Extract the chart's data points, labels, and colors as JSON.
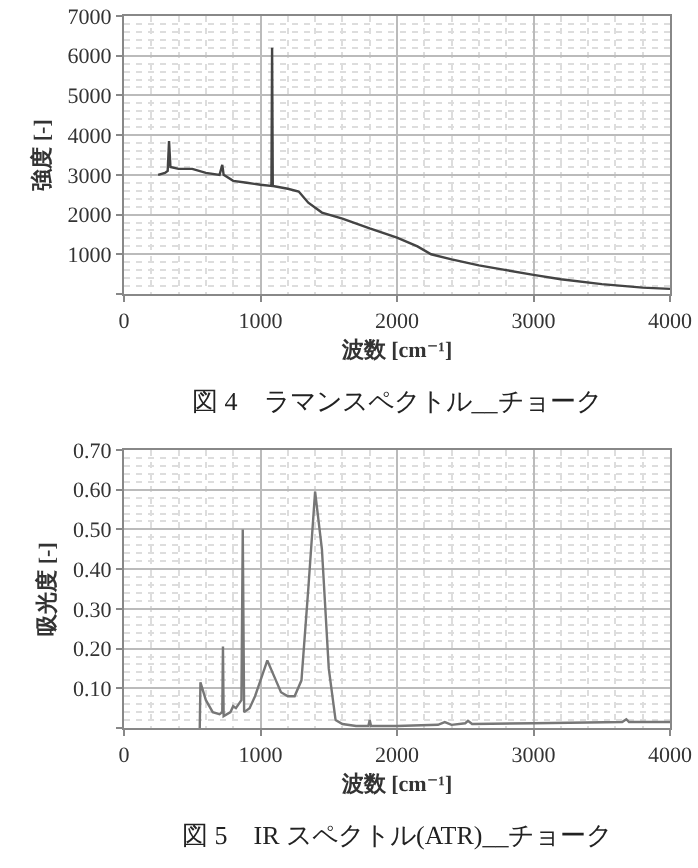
{
  "chart_data": [
    {
      "type": "line",
      "xlabel": "波数 [cm⁻¹]",
      "ylabel": "強度 [-]",
      "annotations": [
        "図 4　ラマンスペクトル__チョーク"
      ],
      "xlim": [
        0,
        4000
      ],
      "ylim": [
        0,
        7000
      ],
      "xticks": [
        0,
        1000,
        2000,
        3000,
        4000
      ],
      "yticks": [
        {
          "value": 0,
          "label": null
        },
        1000,
        2000,
        3000,
        4000,
        5000,
        6000,
        7000
      ],
      "grid": true,
      "marker": "none",
      "line_style": "solid",
      "series": [
        {
          "color": "#444444",
          "x": [
            250,
            300,
            320,
            330,
            340,
            400,
            500,
            600,
            700,
            720,
            730,
            800,
            900,
            1000,
            1080,
            1085,
            1090,
            1200,
            1280,
            1350,
            1450,
            1600,
            1800,
            2000,
            2150,
            2250,
            2400,
            2600,
            2800,
            3000,
            3200,
            3500,
            3800,
            4000
          ],
          "values": [
            3000,
            3050,
            3100,
            3850,
            3200,
            3150,
            3150,
            3050,
            3000,
            3250,
            3000,
            2850,
            2800,
            2750,
            2720,
            6200,
            2720,
            2650,
            2580,
            2300,
            2050,
            1900,
            1650,
            1420,
            1200,
            1000,
            870,
            720,
            600,
            480,
            370,
            250,
            160,
            130
          ]
        }
      ]
    },
    {
      "type": "line",
      "xlabel": "波数 [cm⁻¹]",
      "ylabel": "吸光度 [-]",
      "annotations": [
        "図 5　IR スペクトル(ATR)__チョーク"
      ],
      "xlim": [
        0,
        4000
      ],
      "ylim": [
        0,
        0.7
      ],
      "xticks": [
        0,
        1000,
        2000,
        3000,
        4000
      ],
      "yticks": [
        {
          "value": 0,
          "label": null
        },
        {
          "value": 0.1,
          "label": "0.10"
        },
        {
          "value": 0.2,
          "label": "0.20"
        },
        {
          "value": 0.3,
          "label": "0.30"
        },
        {
          "value": 0.4,
          "label": "0.40"
        },
        {
          "value": 0.5,
          "label": "0.50"
        },
        {
          "value": 0.6,
          "label": "0.60"
        },
        {
          "value": 0.7,
          "label": "0.70"
        }
      ],
      "grid": true,
      "marker": "none",
      "line_style": "solid",
      "series": [
        {
          "color": "#777777",
          "x": [
            555,
            560,
            600,
            650,
            700,
            720,
            725,
            730,
            780,
            800,
            820,
            860,
            870,
            880,
            920,
            960,
            1000,
            1050,
            1100,
            1150,
            1200,
            1250,
            1300,
            1350,
            1400,
            1450,
            1500,
            1550,
            1600,
            1700,
            1790,
            1800,
            1810,
            2000,
            2300,
            2350,
            2400,
            2500,
            2520,
            2550,
            3000,
            3650,
            3680,
            3700,
            4000
          ],
          "values": [
            0,
            0.115,
            0.07,
            0.04,
            0.035,
            0.04,
            0.205,
            0.03,
            0.04,
            0.055,
            0.05,
            0.07,
            0.5,
            0.04,
            0.05,
            0.08,
            0.12,
            0.17,
            0.13,
            0.09,
            0.08,
            0.08,
            0.12,
            0.35,
            0.595,
            0.45,
            0.15,
            0.02,
            0.01,
            0.005,
            0.005,
            0.02,
            0.005,
            0.005,
            0.008,
            0.015,
            0.008,
            0.012,
            0.018,
            0.01,
            0.012,
            0.015,
            0.022,
            0.015,
            0.015
          ]
        }
      ]
    }
  ]
}
